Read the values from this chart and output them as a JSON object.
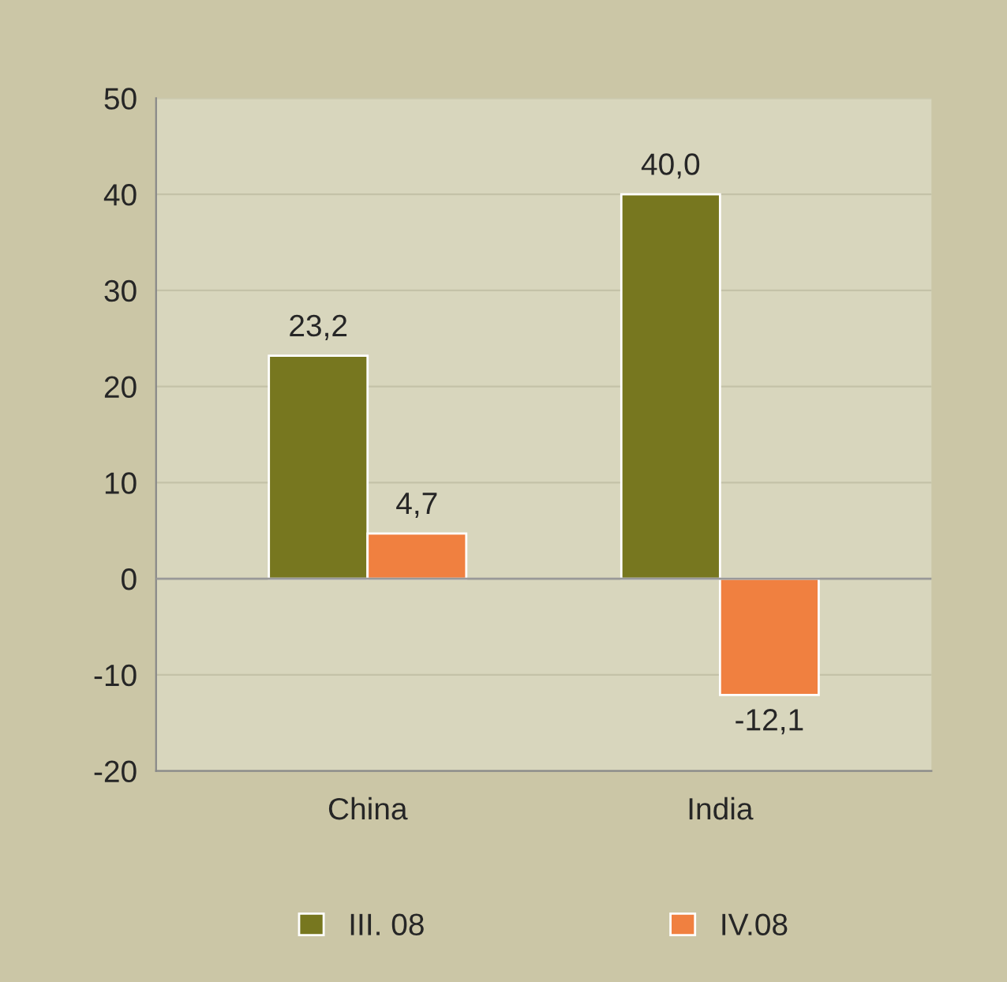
{
  "chart_data": {
    "type": "bar",
    "categories": [
      "China",
      "India"
    ],
    "series": [
      {
        "name": "III. 08",
        "color": "#77771f",
        "values": [
          23.2,
          40.0
        ],
        "value_labels": [
          "23,2",
          "40,0"
        ]
      },
      {
        "name": "IV.08",
        "color": "#f08040",
        "values": [
          4.7,
          -12.1
        ],
        "value_labels": [
          "4,7",
          "-12,1"
        ]
      }
    ],
    "ylim": [
      -20,
      50
    ],
    "yticks": [
      -20,
      -10,
      0,
      10,
      20,
      30,
      40,
      50
    ],
    "grid": "y",
    "legend": "bottom"
  }
}
